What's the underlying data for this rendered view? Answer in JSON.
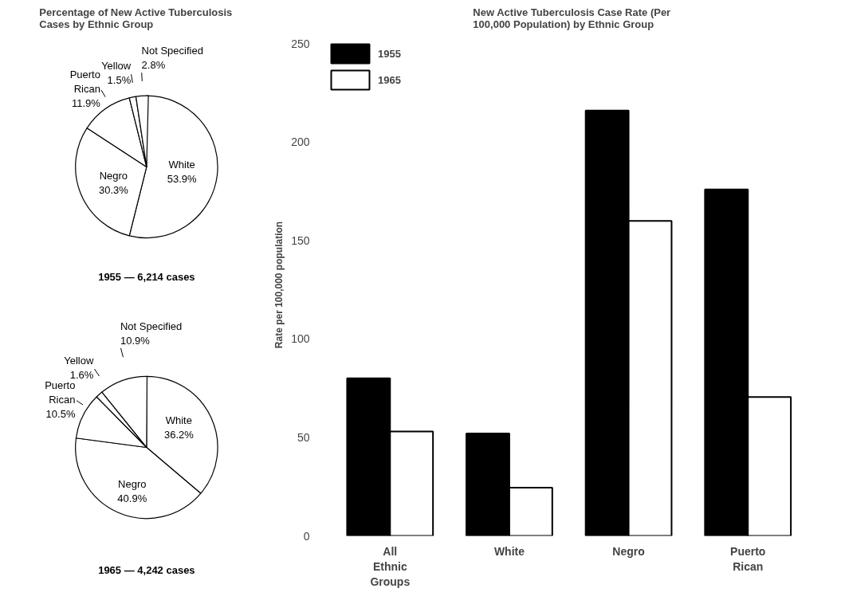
{
  "chart_data": [
    {
      "type": "pie",
      "title": "Percentage of New Active Tuberculosis Cases by Ethnic Group",
      "categories": [
        "White",
        "Negro",
        "Puerto Rican",
        "Yellow",
        "Not Specified"
      ],
      "values": [
        53.9,
        30.3,
        11.9,
        1.5,
        2.8
      ],
      "colors": [
        "#ffffff",
        "#ffffff",
        "#ffffff",
        "#ffffff",
        "#ffffff"
      ],
      "value_labels": [
        "53.9%",
        "30.3%",
        "11.9%",
        "1.5%",
        "2.8%"
      ],
      "annotations": [
        "1955 — 6,214 cases"
      ]
    },
    {
      "type": "pie",
      "categories": [
        "White",
        "Negro",
        "Puerto Rican",
        "Yellow",
        "Not Specified"
      ],
      "values": [
        36.2,
        40.9,
        10.5,
        1.6,
        10.9
      ],
      "colors": [
        "#ffffff",
        "#ffffff",
        "#ffffff",
        "#ffffff",
        "#ffffff"
      ],
      "value_labels": [
        "36.2%",
        "40.9%",
        "10.5%",
        "1.6%",
        "10.9%"
      ],
      "annotations": [
        "1965 — 4,242 cases"
      ]
    },
    {
      "type": "bar",
      "title": "New Active Tuberculosis Case Rate (Per 100,000 Population) by Ethnic Group",
      "ylabel": "Rate per 100,000 population",
      "categories": [
        "All Ethnic Groups",
        "White",
        "Negro",
        "Puerto Rican"
      ],
      "series": [
        {
          "name": "1955",
          "color": "#000000",
          "values": [
            80,
            52,
            216,
            176
          ]
        },
        {
          "name": "1965",
          "color": "#ffffff",
          "values": [
            53,
            24.5,
            160,
            70.5
          ]
        }
      ],
      "ylim": [
        0,
        250
      ],
      "yticks": [
        0,
        50,
        100,
        150,
        200,
        250
      ],
      "grid": false,
      "legend": "top left"
    }
  ]
}
